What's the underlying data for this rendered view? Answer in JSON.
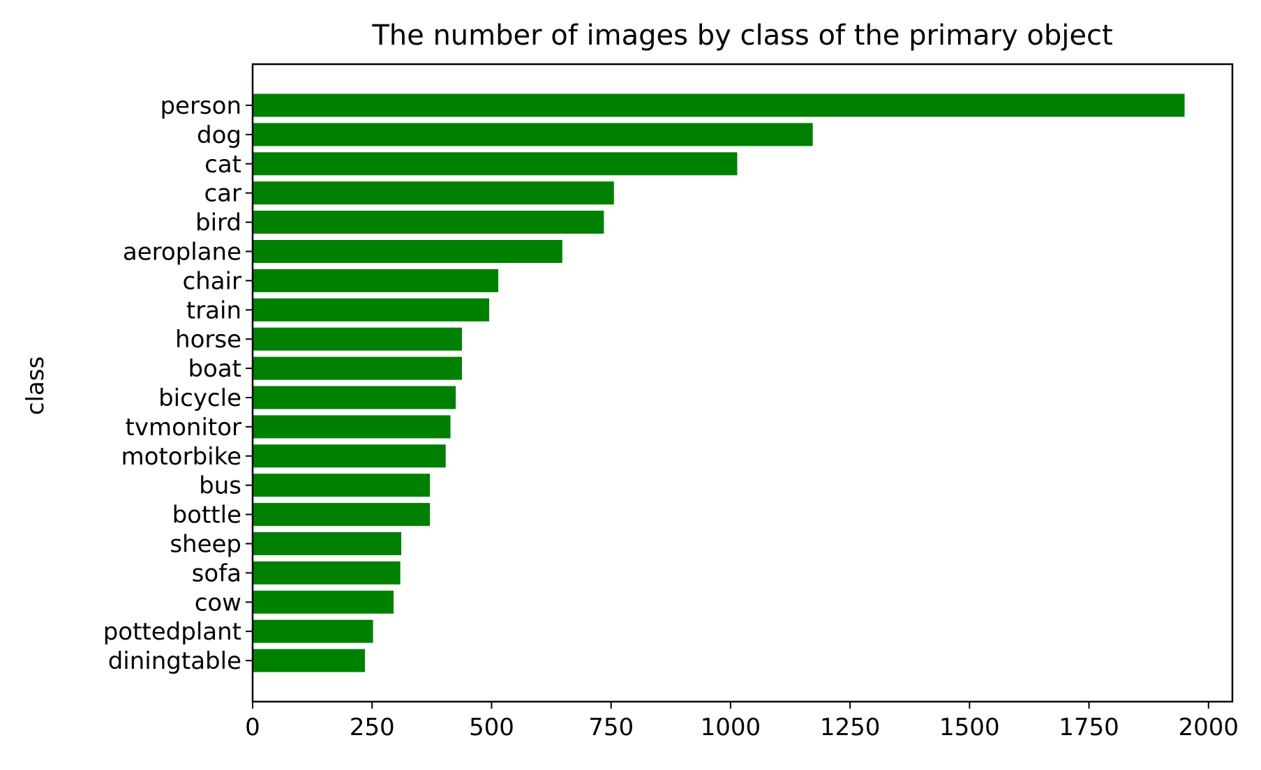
{
  "chart_data": {
    "type": "bar",
    "orientation": "horizontal",
    "title": "The number of images by class of the primary object",
    "xlabel": "",
    "ylabel": "class",
    "categories": [
      "person",
      "dog",
      "cat",
      "car",
      "bird",
      "aeroplane",
      "chair",
      "train",
      "horse",
      "boat",
      "bicycle",
      "tvmonitor",
      "motorbike",
      "bus",
      "bottle",
      "sheep",
      "sofa",
      "cow",
      "pottedplant",
      "diningtable"
    ],
    "values": [
      1950,
      1172,
      1014,
      756,
      735,
      648,
      514,
      495,
      438,
      438,
      425,
      414,
      404,
      371,
      371,
      311,
      309,
      295,
      252,
      235
    ],
    "xlim": [
      0,
      2050
    ],
    "xticks": [
      0,
      250,
      500,
      750,
      1000,
      1250,
      1500,
      1750,
      2000
    ],
    "xtick_labels": [
      "0",
      "250",
      "500",
      "750",
      "1000",
      "1250",
      "1500",
      "1750",
      "2000"
    ],
    "grid": false,
    "legend": "none",
    "colors": {
      "bar": "#008000",
      "axis": "#000000",
      "background": "#ffffff"
    }
  }
}
